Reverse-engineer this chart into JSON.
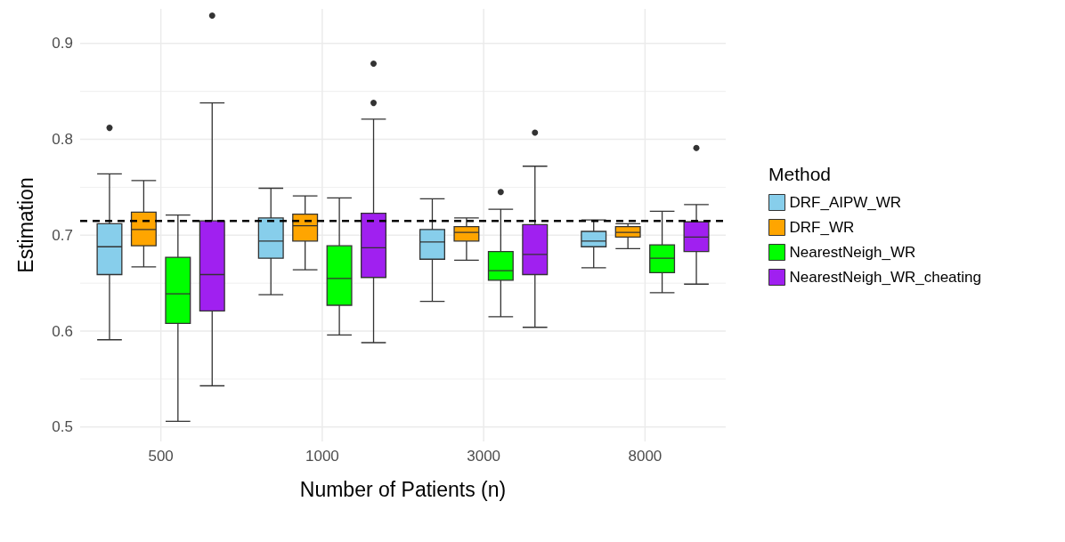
{
  "chart_data": {
    "type": "box",
    "xlabel": "Number of Patients (n)",
    "ylabel": "Estimation",
    "legend_title": "Method",
    "legend": "right",
    "grid": true,
    "categories": [
      "500",
      "1000",
      "3000",
      "8000"
    ],
    "ylim": [
      0.485,
      0.936
    ],
    "yticks": [
      0.5,
      0.6,
      0.7,
      0.8,
      0.9
    ],
    "ref_lines": [
      {
        "axis": "y",
        "value": 0.715,
        "color": "#000000",
        "line_style": "dashed"
      }
    ],
    "series": [
      {
        "name": "DRF_AIPW_WR",
        "color": "#87ceeb",
        "boxes": [
          {
            "low": 0.591,
            "q1": 0.659,
            "median": 0.688,
            "q3": 0.712,
            "high": 0.764,
            "outliers": [
              0.812
            ]
          },
          {
            "low": 0.638,
            "q1": 0.676,
            "median": 0.694,
            "q3": 0.718,
            "high": 0.749
          },
          {
            "low": 0.631,
            "q1": 0.675,
            "median": 0.693,
            "q3": 0.706,
            "high": 0.738
          },
          {
            "low": 0.666,
            "q1": 0.688,
            "median": 0.694,
            "q3": 0.704,
            "high": 0.716
          }
        ]
      },
      {
        "name": "DRF_WR",
        "color": "#ffa500",
        "boxes": [
          {
            "low": 0.667,
            "q1": 0.689,
            "median": 0.706,
            "q3": 0.724,
            "high": 0.757
          },
          {
            "low": 0.664,
            "q1": 0.694,
            "median": 0.71,
            "q3": 0.722,
            "high": 0.741
          },
          {
            "low": 0.674,
            "q1": 0.694,
            "median": 0.703,
            "q3": 0.709,
            "high": 0.718
          },
          {
            "low": 0.686,
            "q1": 0.698,
            "median": 0.703,
            "q3": 0.709,
            "high": 0.712
          }
        ]
      },
      {
        "name": "NearestNeigh_WR",
        "color": "#00ff00",
        "boxes": [
          {
            "low": 0.506,
            "q1": 0.608,
            "median": 0.639,
            "q3": 0.677,
            "high": 0.721
          },
          {
            "low": 0.596,
            "q1": 0.627,
            "median": 0.655,
            "q3": 0.689,
            "high": 0.739
          },
          {
            "low": 0.615,
            "q1": 0.653,
            "median": 0.663,
            "q3": 0.683,
            "high": 0.727,
            "outliers": [
              0.745
            ]
          },
          {
            "low": 0.64,
            "q1": 0.661,
            "median": 0.676,
            "q3": 0.69,
            "high": 0.725
          }
        ]
      },
      {
        "name": "NearestNeigh_WR_cheating",
        "color": "#a020f0",
        "boxes": [
          {
            "low": 0.543,
            "q1": 0.621,
            "median": 0.659,
            "q3": 0.715,
            "high": 0.838,
            "outliers": [
              0.929
            ]
          },
          {
            "low": 0.588,
            "q1": 0.656,
            "median": 0.687,
            "q3": 0.723,
            "high": 0.821,
            "outliers": [
              0.838,
              0.879
            ]
          },
          {
            "low": 0.604,
            "q1": 0.659,
            "median": 0.68,
            "q3": 0.711,
            "high": 0.772,
            "outliers": [
              0.807
            ]
          },
          {
            "low": 0.649,
            "q1": 0.683,
            "median": 0.698,
            "q3": 0.714,
            "high": 0.732,
            "outliers": [
              0.791
            ]
          }
        ]
      }
    ]
  }
}
